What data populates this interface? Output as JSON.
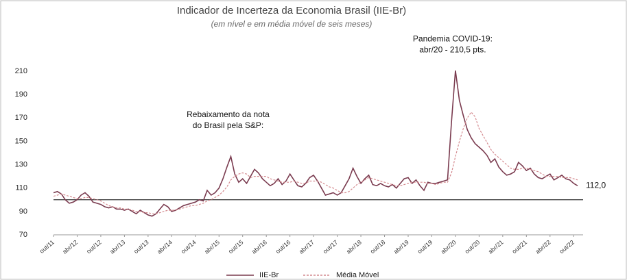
{
  "chart_data": {
    "type": "line",
    "title": "Indicador de Incerteza da Economia Brasil (IIE-Br)",
    "subtitle": "(em nível e em média móvel de seis meses)",
    "categories": [
      "out/11",
      null,
      null,
      null,
      null,
      null,
      "abr/12",
      null,
      null,
      null,
      null,
      null,
      "out/12",
      null,
      null,
      null,
      null,
      null,
      "abr/13",
      null,
      null,
      null,
      null,
      null,
      "out/13",
      null,
      null,
      null,
      null,
      null,
      "abr/14",
      null,
      null,
      null,
      null,
      null,
      "out/14",
      null,
      null,
      null,
      null,
      null,
      "abr/15",
      null,
      null,
      null,
      null,
      null,
      "out/15",
      null,
      null,
      null,
      null,
      null,
      "abr/16",
      null,
      null,
      null,
      null,
      null,
      "out/16",
      null,
      null,
      null,
      null,
      null,
      "abr/17",
      null,
      null,
      null,
      null,
      null,
      "out/17",
      null,
      null,
      null,
      null,
      null,
      "abr/18",
      null,
      null,
      null,
      null,
      null,
      "out/18",
      null,
      null,
      null,
      null,
      null,
      "abr/19",
      null,
      null,
      null,
      null,
      null,
      "out/19",
      null,
      null,
      null,
      null,
      null,
      "abr/20",
      null,
      null,
      null,
      null,
      null,
      "out/20",
      null,
      null,
      null,
      null,
      null,
      "abr/21",
      null,
      null,
      null,
      null,
      null,
      "out/21",
      null,
      null,
      null,
      null,
      null,
      "abr/22",
      null,
      null,
      null,
      null,
      null,
      "out/22",
      null
    ],
    "series": [
      {
        "name": "IIE-Br",
        "color": "#7a3b4f",
        "dash": false,
        "values": [
          106,
          107,
          105,
          100,
          97,
          98,
          100,
          104,
          106,
          103,
          98,
          97,
          96,
          94,
          93,
          94,
          92,
          92,
          91,
          92,
          90,
          88,
          91,
          89,
          87,
          86,
          88,
          92,
          96,
          94,
          90,
          91,
          93,
          95,
          96,
          97,
          98,
          100,
          99,
          108,
          104,
          106,
          110,
          118,
          128,
          137,
          122,
          115,
          118,
          114,
          120,
          126,
          123,
          118,
          115,
          112,
          114,
          118,
          113,
          116,
          122,
          117,
          112,
          111,
          114,
          119,
          121,
          116,
          110,
          104,
          105,
          106,
          104,
          106,
          112,
          118,
          127,
          120,
          114,
          118,
          121,
          113,
          112,
          114,
          112,
          111,
          113,
          110,
          114,
          118,
          119,
          114,
          117,
          112,
          108,
          115,
          114,
          114,
          115,
          116,
          117,
          167,
          210.5,
          185,
          172,
          160,
          153,
          148,
          145,
          142,
          138,
          132,
          135,
          128,
          124,
          121,
          122,
          124,
          132,
          129,
          125,
          127,
          122,
          119,
          118,
          120,
          122,
          117,
          119,
          121,
          118,
          117,
          114,
          112
        ]
      },
      {
        "name": "Média Móvel",
        "color": "#d48a8f",
        "dash": true,
        "values": [
          103,
          104,
          105,
          104,
          103,
          102,
          101,
          101,
          102,
          102,
          101,
          100,
          99,
          97,
          95,
          94,
          93,
          93,
          92,
          92,
          91,
          90,
          90,
          89,
          89,
          88,
          88,
          89,
          90,
          91,
          91,
          91,
          92,
          93,
          94,
          95,
          95,
          96,
          97,
          99,
          100,
          102,
          104,
          107,
          111,
          117,
          120,
          122,
          123,
          122,
          119,
          120,
          120,
          120,
          120,
          118,
          117,
          116,
          115,
          115,
          115,
          116,
          115,
          114,
          114,
          116,
          116,
          116,
          115,
          113,
          111,
          110,
          108,
          106,
          106,
          107,
          110,
          113,
          115,
          117,
          119,
          118,
          117,
          116,
          115,
          114,
          113,
          112,
          112,
          113,
          114,
          115,
          115,
          115,
          115,
          114,
          114,
          113,
          114,
          115,
          115,
          123,
          137,
          150,
          161,
          170,
          175,
          171,
          161,
          155,
          149,
          143,
          139,
          136,
          133,
          130,
          127,
          126,
          126,
          127,
          127,
          126,
          125,
          124,
          122,
          120,
          120,
          120,
          120,
          119,
          119,
          119,
          118,
          117
        ]
      }
    ],
    "ylim": [
      70,
      210
    ],
    "yticks": [
      70,
      90,
      110,
      130,
      150,
      170,
      190,
      210
    ],
    "reference_line": 100,
    "annotations": [
      {
        "lines": [
          "Pandemia COVID-19:",
          "abr/20 - 210,5 pts."
        ],
        "index": 102
      },
      {
        "lines": [
          "Rebaixamento da nota",
          "do Brasil pela S&P:"
        ],
        "index": 45
      },
      {
        "lines": [
          "112,0"
        ],
        "index": 133
      }
    ]
  }
}
